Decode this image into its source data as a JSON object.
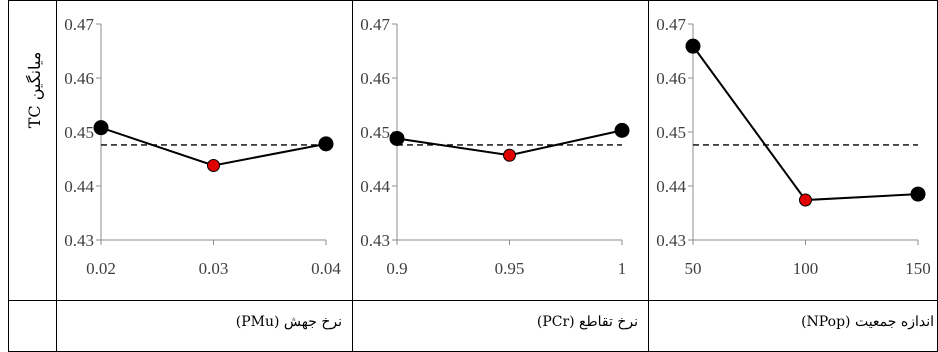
{
  "y_axis_label": "میانگین TC",
  "chart_data": [
    {
      "type": "line",
      "xlabel": "نرخ جهش (PMu)",
      "categories": [
        "0.02",
        "0.03",
        "0.04"
      ],
      "values": [
        0.4508,
        0.4438,
        0.4478
      ],
      "highlight_index": 1,
      "mean": 0.4476,
      "ylim": [
        0.43,
        0.47
      ],
      "yticks": [
        "0.47",
        "0.46",
        "0.45",
        "0.44",
        "0.43"
      ],
      "grid": false
    },
    {
      "type": "line",
      "xlabel": "نرخ تقاطع (PCr)",
      "categories": [
        "0.9",
        "0.95",
        "1"
      ],
      "values": [
        0.4488,
        0.4457,
        0.4503
      ],
      "highlight_index": 1,
      "mean": 0.4476,
      "ylim": [
        0.43,
        0.47
      ],
      "yticks": [
        "0.47",
        "0.46",
        "0.45",
        "0.44",
        "0.43"
      ],
      "grid": false
    },
    {
      "type": "line",
      "xlabel": "اندازه جمعیت (NPop)",
      "categories": [
        "50",
        "100",
        "150"
      ],
      "values": [
        0.4659,
        0.4374,
        0.4385
      ],
      "highlight_index": 1,
      "mean": 0.4476,
      "ylim": [
        0.43,
        0.47
      ],
      "yticks": [
        "0.47",
        "0.46",
        "0.45",
        "0.44",
        "0.43"
      ],
      "grid": false
    }
  ],
  "colors": {
    "point": "#000000",
    "highlight": "#e00000",
    "line": "#000000"
  }
}
